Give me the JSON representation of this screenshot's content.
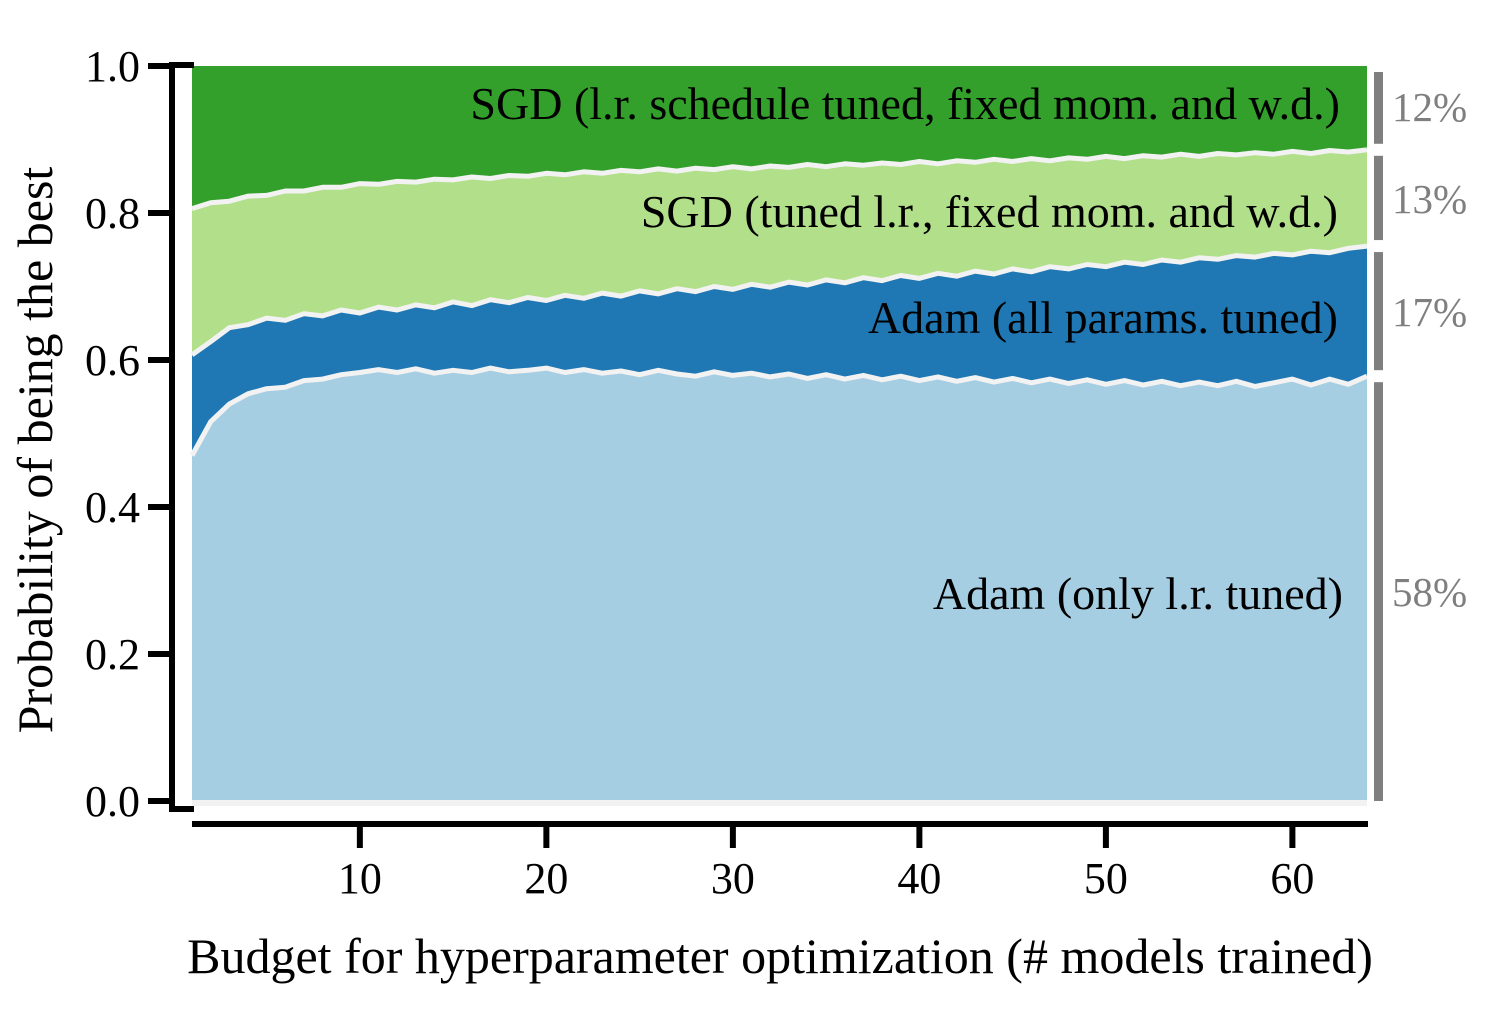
{
  "chart_data": {
    "type": "area",
    "stacked": true,
    "title": "",
    "xlabel": "Budget for hyperparameter optimization (# models trained)",
    "ylabel": "Probability of being the best",
    "xlim": [
      1,
      64
    ],
    "ylim": [
      0.0,
      1.0
    ],
    "grid": false,
    "legend_position": "labels-inside-areas",
    "x_ticks": [
      {
        "value": 10,
        "label": "10"
      },
      {
        "value": 20,
        "label": "20"
      },
      {
        "value": 30,
        "label": "30"
      },
      {
        "value": 40,
        "label": "40"
      },
      {
        "value": 50,
        "label": "50"
      },
      {
        "value": 60,
        "label": "60"
      }
    ],
    "y_ticks": [
      {
        "value": 0.0,
        "label": "0.0"
      },
      {
        "value": 0.2,
        "label": "0.2"
      },
      {
        "value": 0.4,
        "label": "0.4"
      },
      {
        "value": 0.6,
        "label": "0.6"
      },
      {
        "value": 0.8,
        "label": "0.8"
      },
      {
        "value": 1.0,
        "label": "1.0"
      }
    ],
    "x": [
      1,
      2,
      3,
      4,
      5,
      6,
      7,
      8,
      9,
      10,
      11,
      12,
      13,
      14,
      15,
      16,
      17,
      18,
      19,
      20,
      21,
      22,
      23,
      24,
      25,
      26,
      27,
      28,
      29,
      30,
      31,
      32,
      33,
      34,
      35,
      36,
      37,
      38,
      39,
      40,
      41,
      42,
      43,
      44,
      45,
      46,
      47,
      48,
      49,
      50,
      51,
      52,
      53,
      54,
      55,
      56,
      57,
      58,
      59,
      60,
      61,
      62,
      63,
      64
    ],
    "series": [
      {
        "name": "Adam (only l.r. tuned)",
        "color": "#a6cee3",
        "share_label": "58%",
        "cumulative_top": [
          0.47,
          0.516,
          0.54,
          0.554,
          0.561,
          0.563,
          0.572,
          0.574,
          0.58,
          0.583,
          0.587,
          0.583,
          0.588,
          0.582,
          0.586,
          0.583,
          0.589,
          0.584,
          0.586,
          0.589,
          0.583,
          0.587,
          0.582,
          0.585,
          0.58,
          0.586,
          0.581,
          0.578,
          0.584,
          0.579,
          0.582,
          0.577,
          0.581,
          0.575,
          0.58,
          0.574,
          0.579,
          0.573,
          0.578,
          0.572,
          0.577,
          0.571,
          0.576,
          0.57,
          0.575,
          0.569,
          0.574,
          0.568,
          0.573,
          0.567,
          0.572,
          0.566,
          0.571,
          0.565,
          0.57,
          0.565,
          0.571,
          0.564,
          0.569,
          0.574,
          0.566,
          0.574,
          0.567,
          0.578
        ]
      },
      {
        "name": "Adam (all params. tuned)",
        "color": "#1f78b4",
        "share_label": "17%",
        "cumulative_top": [
          0.607,
          0.625,
          0.644,
          0.648,
          0.657,
          0.654,
          0.663,
          0.66,
          0.668,
          0.664,
          0.672,
          0.668,
          0.675,
          0.671,
          0.679,
          0.674,
          0.682,
          0.678,
          0.685,
          0.681,
          0.688,
          0.684,
          0.691,
          0.687,
          0.694,
          0.69,
          0.697,
          0.693,
          0.7,
          0.696,
          0.703,
          0.699,
          0.706,
          0.702,
          0.709,
          0.705,
          0.712,
          0.708,
          0.715,
          0.711,
          0.718,
          0.714,
          0.721,
          0.717,
          0.724,
          0.72,
          0.727,
          0.724,
          0.73,
          0.727,
          0.733,
          0.73,
          0.736,
          0.733,
          0.739,
          0.737,
          0.742,
          0.74,
          0.745,
          0.743,
          0.748,
          0.746,
          0.752,
          0.755
        ]
      },
      {
        "name": "SGD (tuned l.r., fixed mom. and w.d.)",
        "color": "#b2df8a",
        "share_label": "13%",
        "cumulative_top": [
          0.806,
          0.814,
          0.816,
          0.823,
          0.824,
          0.83,
          0.83,
          0.835,
          0.835,
          0.84,
          0.839,
          0.843,
          0.842,
          0.846,
          0.845,
          0.849,
          0.847,
          0.851,
          0.85,
          0.854,
          0.852,
          0.856,
          0.854,
          0.858,
          0.856,
          0.86,
          0.857,
          0.861,
          0.859,
          0.863,
          0.86,
          0.864,
          0.862,
          0.866,
          0.863,
          0.867,
          0.865,
          0.868,
          0.866,
          0.87,
          0.867,
          0.871,
          0.869,
          0.873,
          0.87,
          0.874,
          0.871,
          0.875,
          0.873,
          0.877,
          0.874,
          0.878,
          0.876,
          0.88,
          0.877,
          0.881,
          0.879,
          0.882,
          0.88,
          0.884,
          0.881,
          0.885,
          0.883,
          0.886
        ]
      },
      {
        "name": "SGD (l.r. schedule tuned, fixed mom. and w.d.)",
        "color": "#33a02c",
        "share_label": "12%",
        "cumulative_top_constant": 1.0
      }
    ],
    "edge_color": "#f2f2f2",
    "annotation": {
      "bar_color": "#7f7f7f",
      "text_color": "#7f7f7f"
    }
  }
}
